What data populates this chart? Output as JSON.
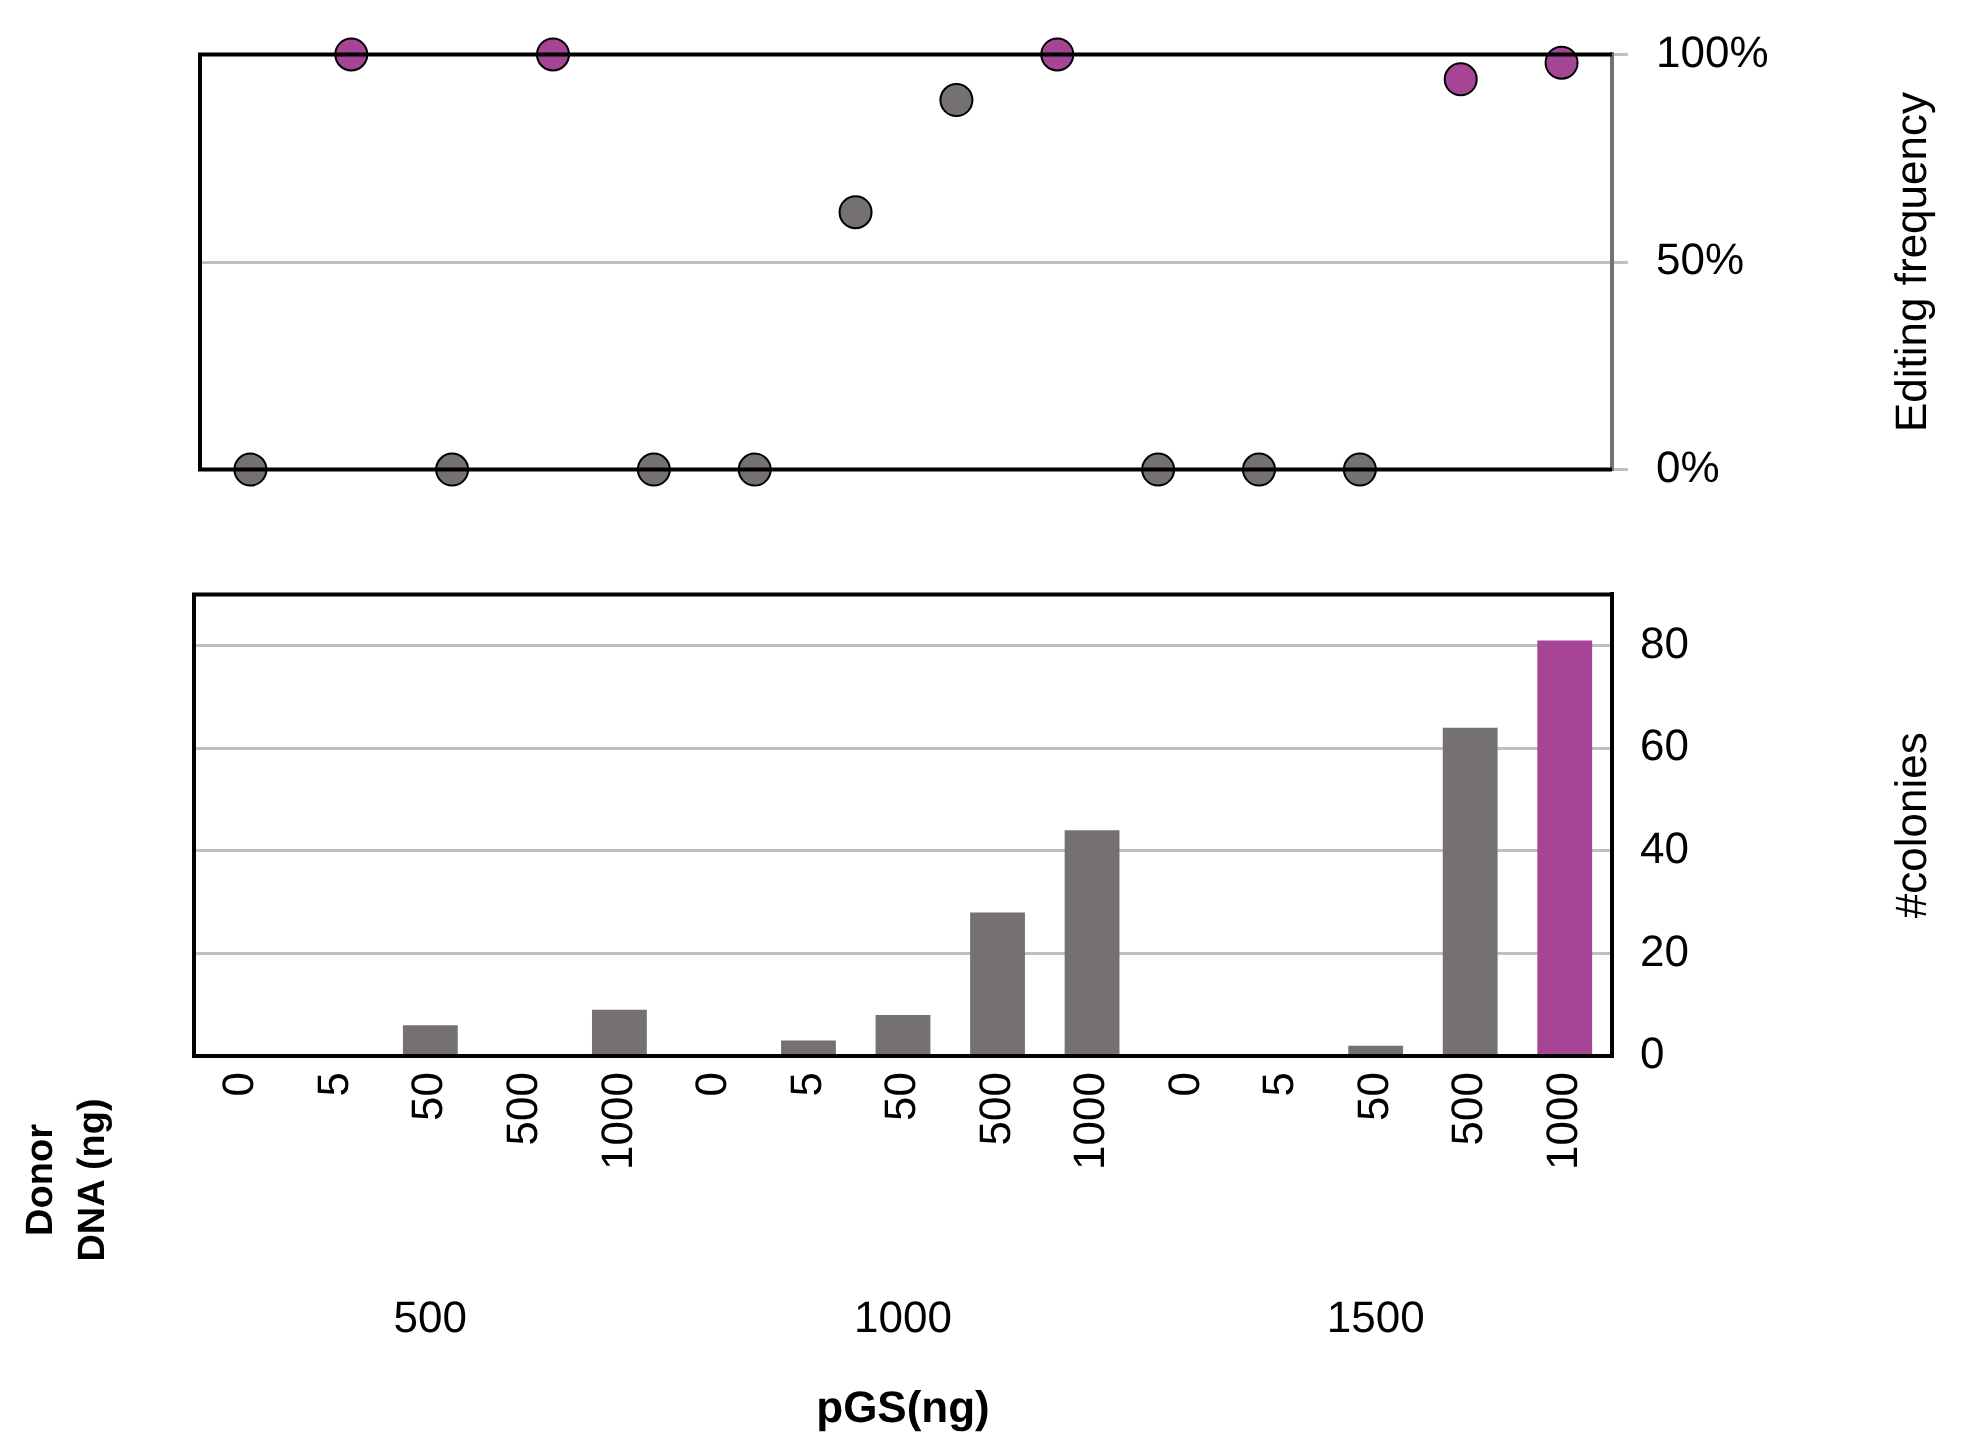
{
  "chart_data": [
    {
      "type": "scatter",
      "ylabel": "Editing frequency",
      "categories": [
        null,
        null,
        null,
        null,
        null,
        null,
        null,
        null,
        null,
        null,
        null,
        null,
        null,
        null
      ],
      "values": [
        0,
        100,
        0,
        100,
        0,
        0,
        62,
        89,
        100,
        0,
        0,
        0,
        94,
        98
      ],
      "colors": [
        "#767171",
        "#a64595",
        "#767171",
        "#a64595",
        "#767171",
        "#767171",
        "#767171",
        "#767171",
        "#a64595",
        "#767171",
        "#767171",
        "#767171",
        "#a64595",
        "#a64595"
      ],
      "ylim": [
        0,
        100
      ],
      "yticks": [
        {
          "value": 0,
          "label": "0%"
        },
        {
          "value": 50,
          "label": "50%"
        },
        {
          "value": 100,
          "label": "100%"
        }
      ],
      "grid": "y",
      "marker": "circle",
      "tick_labels": "y"
    },
    {
      "type": "bar",
      "xlabel": "pGS(ng)",
      "ylabel": "#colonies",
      "categories": [
        "0",
        "5",
        "50",
        "500",
        "1000",
        "0",
        "5",
        "50",
        "500",
        "1000",
        "0",
        "5",
        "50",
        "500",
        "1000"
      ],
      "values": [
        0,
        0,
        6,
        0,
        9,
        0,
        3,
        8,
        28,
        44,
        0,
        0,
        2,
        64,
        81
      ],
      "colors": [
        "#767171",
        "#767171",
        "#767171",
        "#767171",
        "#767171",
        "#767171",
        "#767171",
        "#767171",
        "#767171",
        "#767171",
        "#767171",
        "#767171",
        "#767171",
        "#767171",
        "#a64595"
      ],
      "ylim": [
        0,
        90
      ],
      "yticks": [
        0,
        20,
        40,
        60,
        80
      ],
      "grid": "y",
      "annotations": [
        "Donor DNA (ng)",
        "500",
        "1000",
        "1500"
      ]
    }
  ]
}
